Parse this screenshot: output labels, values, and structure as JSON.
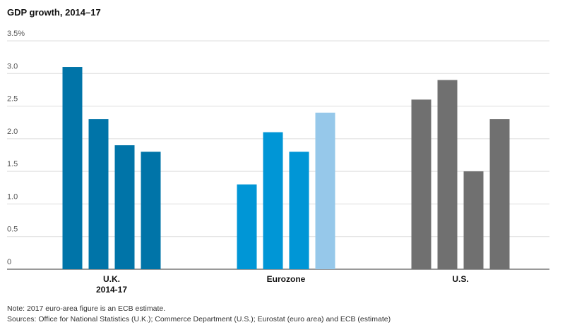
{
  "chart_data": {
    "type": "bar",
    "title": "GDP growth, 2014–17",
    "groups": [
      {
        "name": "U.K.",
        "sublabel": "2014-17",
        "values": [
          3.1,
          2.3,
          1.9,
          1.8
        ],
        "colors": [
          "#0074a8",
          "#0074a8",
          "#0074a8",
          "#0074a8"
        ]
      },
      {
        "name": "Eurozone",
        "values": [
          1.3,
          2.1,
          1.8,
          2.4
        ],
        "colors": [
          "#0096d6",
          "#0096d6",
          "#0096d6",
          "#96c8ea"
        ]
      },
      {
        "name": "U.S.",
        "values": [
          2.6,
          2.9,
          1.5,
          2.3
        ],
        "colors": [
          "#707070",
          "#707070",
          "#707070",
          "#707070"
        ]
      }
    ],
    "ylim": [
      0,
      3.5
    ],
    "yticks": [
      0,
      0.5,
      {
        "value": 1,
        "label": "1.0"
      },
      1.5,
      {
        "value": 2,
        "label": "2.0"
      },
      2.5,
      {
        "value": 3,
        "label": "3.0"
      },
      {
        "value": 3.5,
        "label": "3.5%"
      }
    ],
    "grid": true,
    "note": "Note: 2017 euro-area figure is an ECB estimate.",
    "source": "Sources: Office for National Statistics (U.K.); Commerce Department (U.S.); Eurostat (euro area) and ECB (estimate)"
  }
}
